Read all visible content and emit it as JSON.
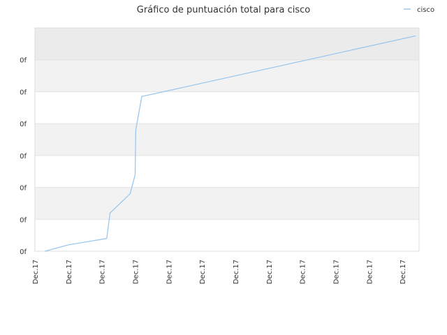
{
  "chart_data": {
    "type": "line",
    "title": "Gráfico de puntuación total para cisco",
    "xlabel": "",
    "ylabel": "",
    "x_tick_labels": [
      "Dec.17",
      "Dec.17",
      "Dec.17",
      "Dec.17",
      "Dec.17",
      "Dec.17",
      "Dec.17",
      "Dec.17",
      "Dec.17",
      "Dec.17",
      "Dec.17",
      "Dec.17"
    ],
    "y_tick_labels": [
      "0f",
      "0f",
      "0f",
      "0f",
      "0f",
      "0f",
      "0f"
    ],
    "ylim": [
      0,
      7
    ],
    "xlim": [
      0,
      11.5
    ],
    "grid": true,
    "band_colors": [
      "#ffffff",
      "#f2f2f2",
      "#ebebeb"
    ],
    "legend_position": "top-right",
    "series": [
      {
        "name": "cisco",
        "color": "#9ac7ee",
        "x": [
          0.3,
          1.0,
          2.15,
          2.25,
          2.55,
          2.85,
          3.0,
          3.02,
          3.2,
          11.4
        ],
        "y": [
          0.0,
          0.2,
          0.4,
          1.2,
          1.5,
          1.8,
          2.4,
          3.8,
          4.85,
          6.75
        ]
      }
    ]
  }
}
